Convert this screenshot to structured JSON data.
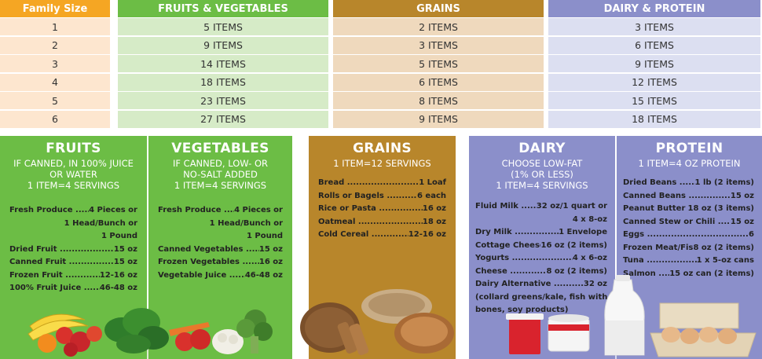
{
  "table": {
    "headers": [
      "Family Size",
      "FRUITS & VEGETABLES",
      "GRAINS",
      "DAIRY & PROTEIN"
    ],
    "rows": [
      [
        "1",
        "5 ITEMS",
        "2 ITEMS",
        "3 ITEMS"
      ],
      [
        "2",
        "9 ITEMS",
        "3 ITEMS",
        "6 ITEMS"
      ],
      [
        "3",
        "14 ITEMS",
        "5 ITEMS",
        "9 ITEMS"
      ],
      [
        "4",
        "18 ITEMS",
        "6 ITEMS",
        "12 ITEMS"
      ],
      [
        "5",
        "23 ITEMS",
        "8 ITEMS",
        "15 ITEMS"
      ],
      [
        "6",
        "27 ITEMS",
        "9 ITEMS",
        "18 ITEMS"
      ]
    ]
  },
  "fruits": {
    "title": "FRUITS",
    "subtitle": [
      "IF CANNED, IN 100% JUICE",
      "OR WATER",
      "1 ITEM=4 SERVINGS"
    ],
    "items": [
      {
        "label": "Fresh Produce",
        "value": "4 Pieces or"
      },
      {
        "label": "",
        "value": "1 Head/Bunch or"
      },
      {
        "label": "",
        "value": "1 Pound"
      },
      {
        "label": "Dried Fruit",
        "value": "15 oz"
      },
      {
        "label": "Canned Fruit",
        "value": "15 oz"
      },
      {
        "label": "Frozen Fruit",
        "value": "12-16 oz"
      },
      {
        "label": "100% Fruit Juice",
        "value": "46-48 oz"
      }
    ]
  },
  "vegetables": {
    "title": "VEGETABLES",
    "subtitle": [
      "IF CANNED, LOW- OR",
      "NO-SALT ADDED",
      "1 ITEM=4 SERVINGS"
    ],
    "items": [
      {
        "label": "Fresh Produce",
        "value": "4 Pieces or"
      },
      {
        "label": "",
        "value": "1 Head/Bunch or"
      },
      {
        "label": "",
        "value": "1 Pound"
      },
      {
        "label": "Canned Vegetables",
        "value": "15 oz"
      },
      {
        "label": "Frozen Vegetables",
        "value": "16 oz"
      },
      {
        "label": "Vegetable Juice",
        "value": "46-48 oz"
      }
    ]
  },
  "grains": {
    "title": "GRAINS",
    "subtitle": [
      "1 ITEM=12 SERVINGS"
    ],
    "items": [
      {
        "label": "Bread",
        "value": "1 Loaf"
      },
      {
        "label": "Rolls or Bagels",
        "value": "6 each"
      },
      {
        "label": "Rice or Pasta",
        "value": "16 oz"
      },
      {
        "label": "Oatmeal",
        "value": "18 oz"
      },
      {
        "label": "Cold Cereal",
        "value": "12-16 oz"
      }
    ]
  },
  "dairy": {
    "title": "DAIRY",
    "subtitle": [
      "CHOOSE LOW-FAT",
      "(1% OR LESS)",
      "1 ITEM=4 SERVINGS"
    ],
    "items": [
      {
        "label": "Fluid Milk",
        "value": "32 oz/1 quart or"
      },
      {
        "label": "",
        "value": "4 x 8-oz"
      },
      {
        "label": "Dry Milk",
        "value": "1 Envelope"
      },
      {
        "label": "Cottage Cheese",
        "value": "16 oz (2 items)"
      },
      {
        "label": "Yogurts",
        "value": "4 x 6-oz"
      },
      {
        "label": "Cheese",
        "value": "8 oz (2 items)"
      },
      {
        "label": "Dairy Alternative",
        "value": "32 oz"
      },
      {
        "label": "(collard greens/kale, fish with",
        "value": ""
      },
      {
        "label": "bones, soy products)",
        "value": ""
      }
    ]
  },
  "protein": {
    "title": "PROTEIN",
    "subtitle": [
      "1 ITEM=4 OZ PROTEIN"
    ],
    "items": [
      {
        "label": "Dried Beans",
        "value": "1 lb (2 items)"
      },
      {
        "label": "Canned Beans",
        "value": "15 oz"
      },
      {
        "label": "Peanut Butter",
        "value": "18 oz (3 items)"
      },
      {
        "label": "Canned Stew or Chili",
        "value": "15 oz"
      },
      {
        "label": "Eggs",
        "value": "6"
      },
      {
        "label": "Frozen Meat/Fish",
        "value": "8 oz (2 items)"
      },
      {
        "label": "Tuna",
        "value": "1 x 5-oz cans"
      },
      {
        "label": "Salmon",
        "value": "15 oz can (2 items)"
      }
    ]
  }
}
